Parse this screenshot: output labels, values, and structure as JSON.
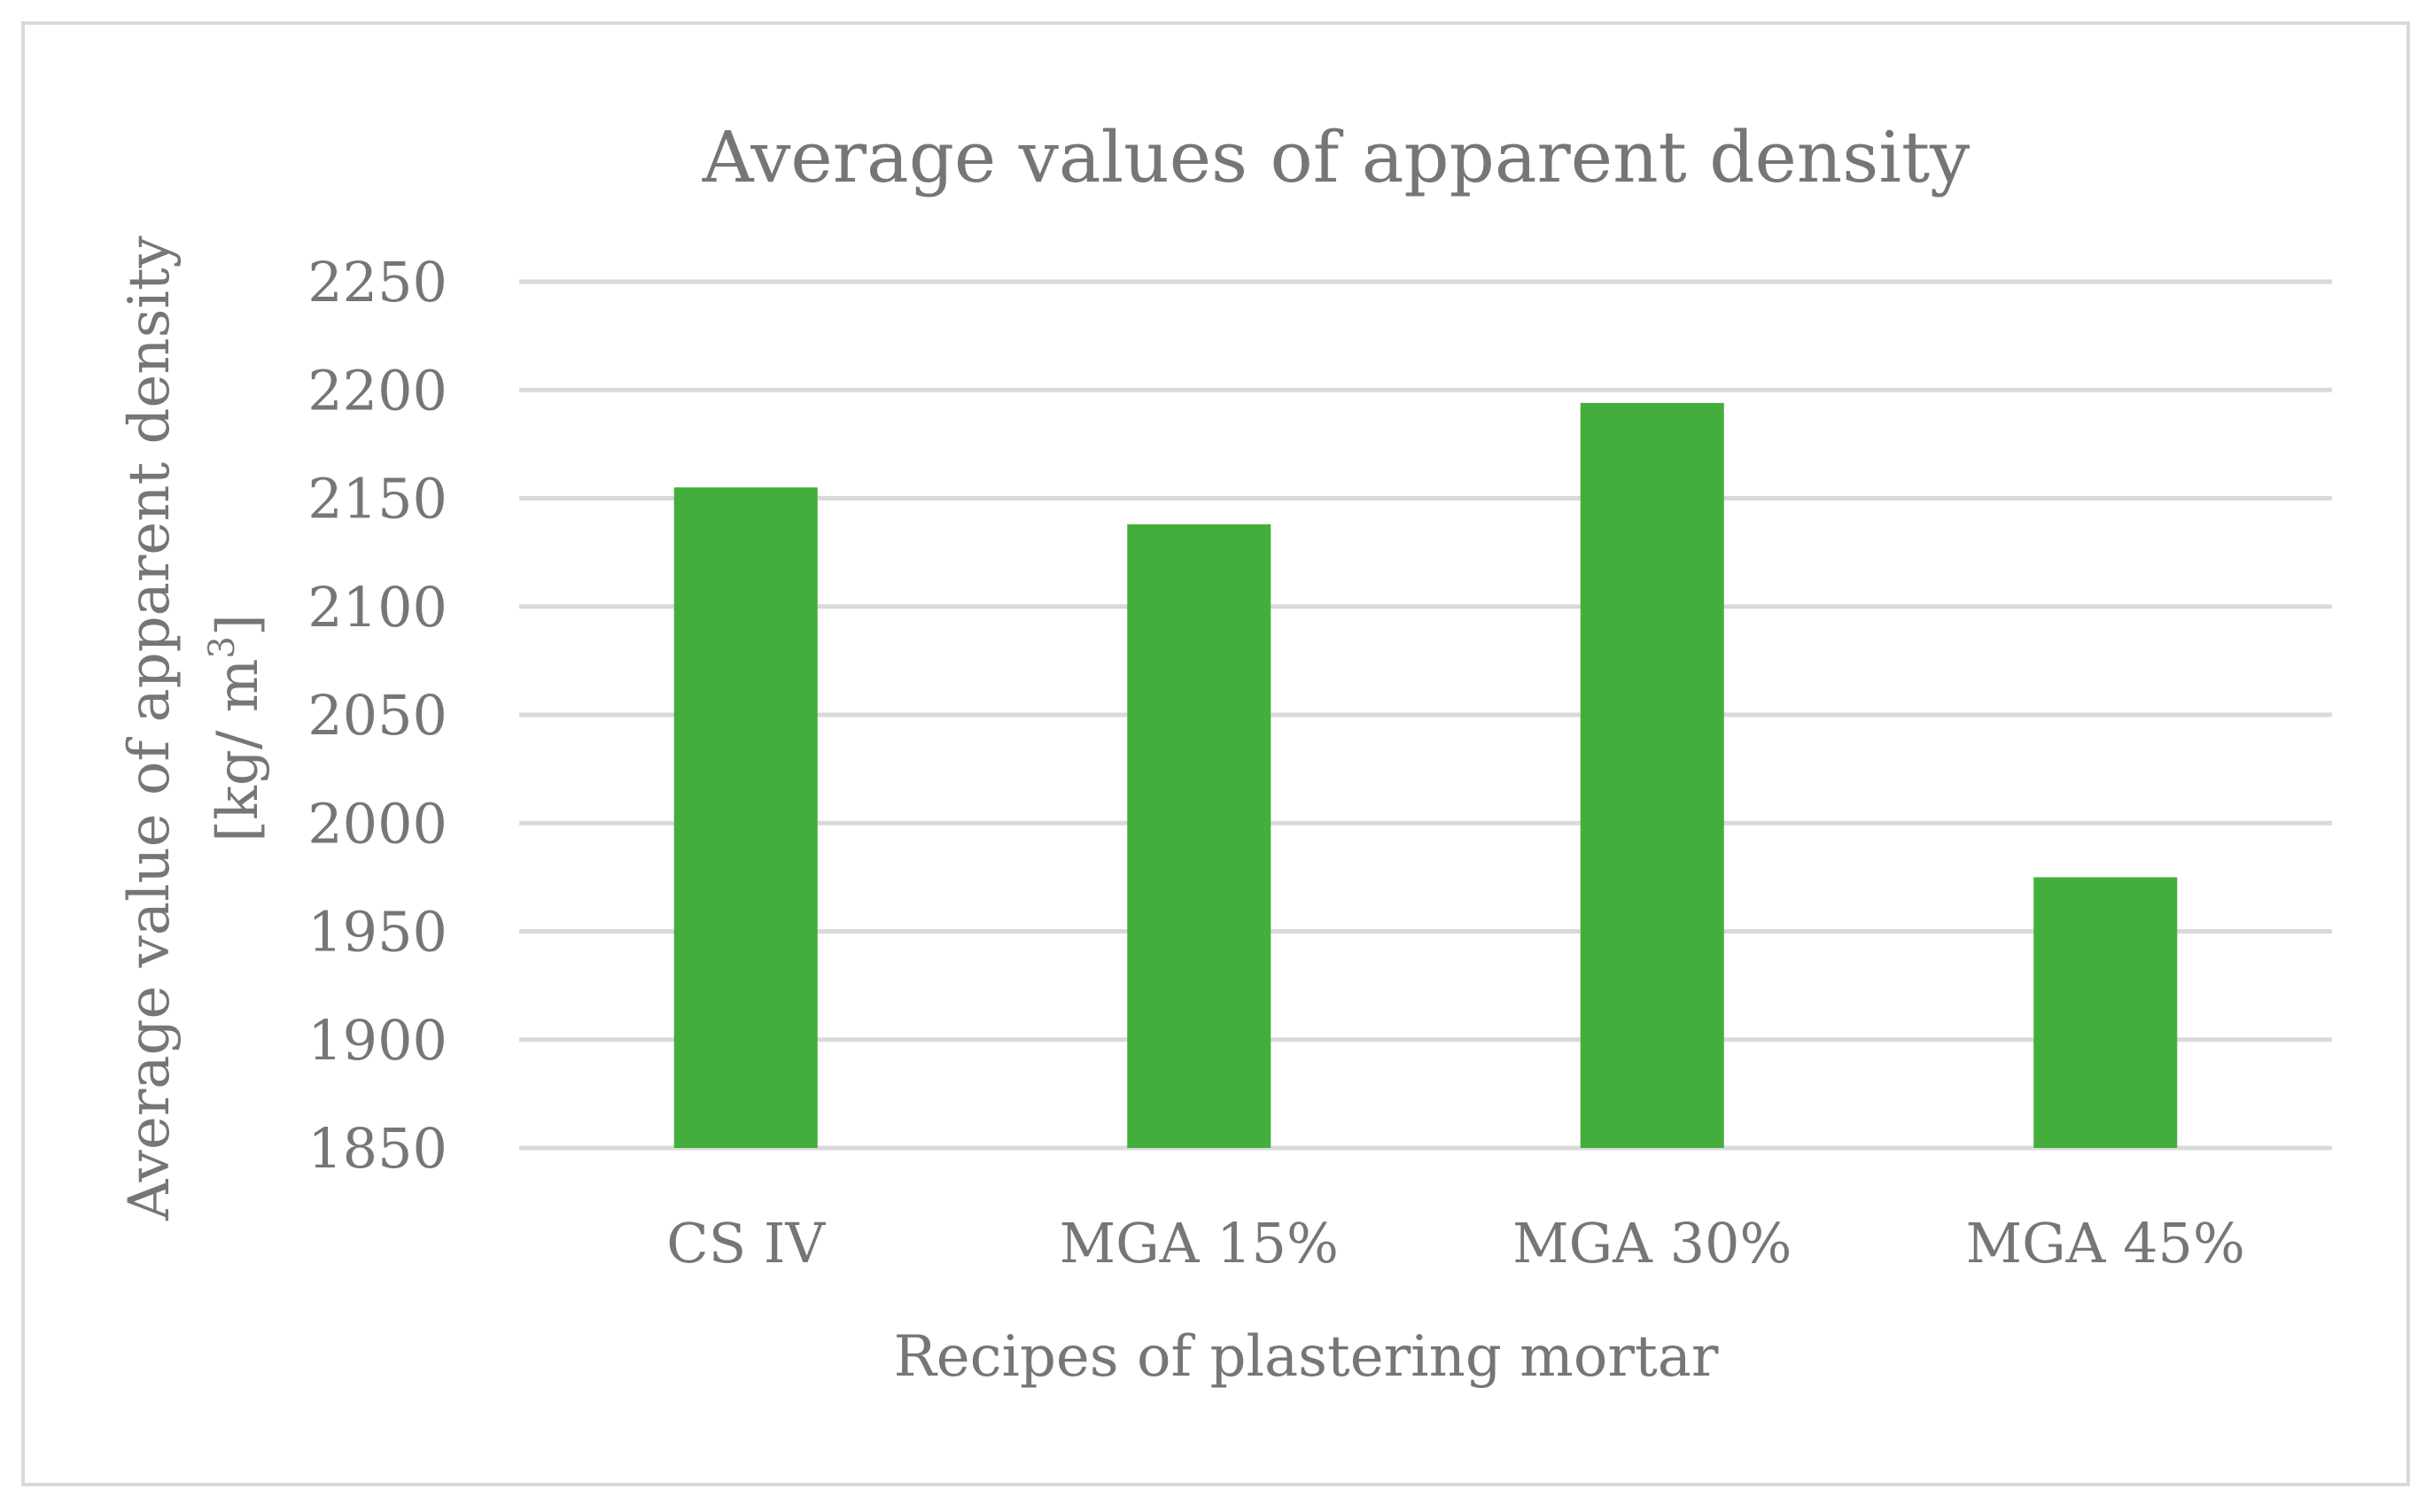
{
  "chart_data": {
    "type": "bar",
    "title": "Average values of apparent density",
    "xlabel": "Recipes of plastering mortar",
    "ylabel": {
      "line1": "Average value of apparent density",
      "line2_prefix": "[kg/ m",
      "line2_sup": "3",
      "line2_suffix": "]"
    },
    "categories": [
      "CS IV",
      "MGA 15%",
      "MGA 30%",
      "MGA 45%"
    ],
    "values": [
      2155,
      2138,
      2194,
      1975
    ],
    "ylim": [
      1850,
      2250
    ],
    "yticks": [
      1850,
      1900,
      1950,
      2000,
      2050,
      2100,
      2150,
      2200,
      2250
    ],
    "grid": true,
    "legend": "none"
  },
  "colors": {
    "bar": "#44ae3c",
    "grid": "#d9d9d9",
    "text": "#767676",
    "frame": "#d9d9d9"
  }
}
